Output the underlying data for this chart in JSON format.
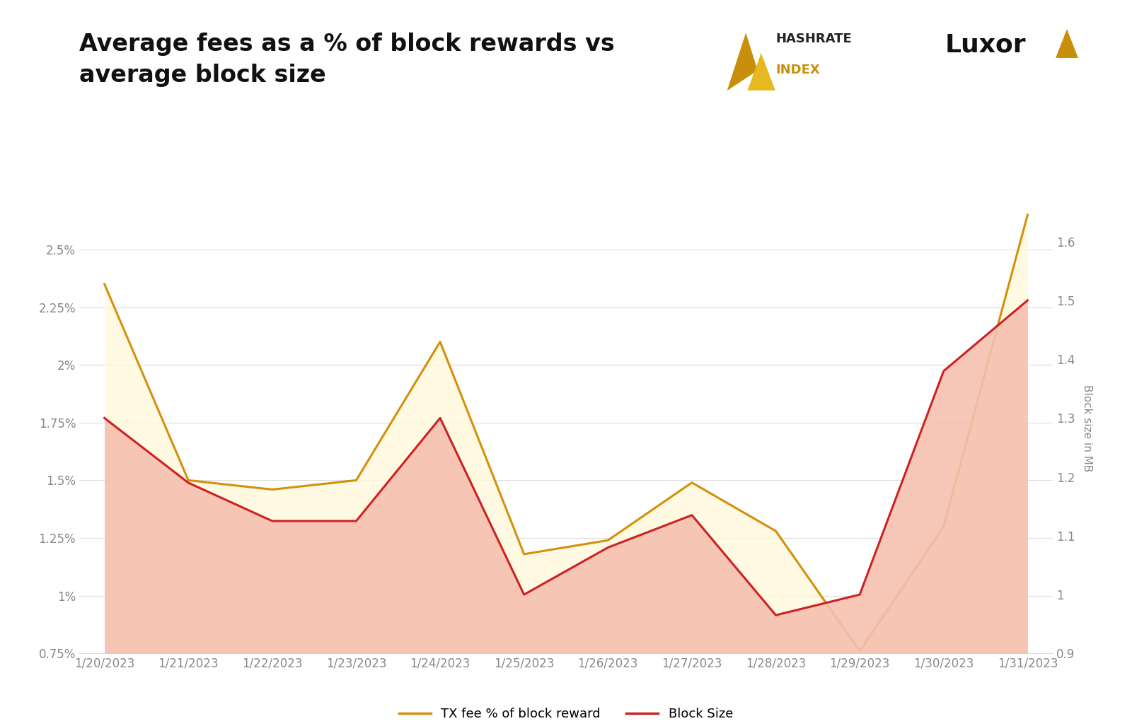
{
  "title": "Average fees as a % of block rewards vs\naverage block size",
  "dates": [
    "1/20/2023",
    "1/21/2023",
    "1/22/2023",
    "1/23/2023",
    "1/24/2023",
    "1/25/2023",
    "1/26/2023",
    "1/27/2023",
    "1/28/2023",
    "1/29/2023",
    "1/30/2023",
    "1/31/2023"
  ],
  "tx_fee_pct": [
    0.0235,
    0.015,
    0.0146,
    0.015,
    0.021,
    0.0118,
    0.0124,
    0.0149,
    0.0128,
    0.0076,
    0.013,
    0.0265
  ],
  "block_size": [
    1.3,
    1.19,
    1.125,
    1.125,
    1.3,
    1.0,
    1.08,
    1.135,
    0.965,
    1.0,
    1.38,
    1.5
  ],
  "tx_fee_color": "#D4900A",
  "block_size_color": "#CC2222",
  "tx_fee_fill_color": "#FFFADC",
  "block_size_fill_color": "#F5C0B0",
  "ylim_left": [
    0.0075,
    0.027
  ],
  "ylim_right": [
    0.9,
    1.665
  ],
  "yticks_left": [
    0.0075,
    0.01,
    0.0125,
    0.015,
    0.0175,
    0.02,
    0.0225,
    0.025
  ],
  "yticks_right": [
    0.9,
    1.0,
    1.1,
    1.2,
    1.3,
    1.4,
    1.5,
    1.6
  ],
  "ytick_labels_left": [
    "0.75%",
    "1%",
    "1.25%",
    "1.5%",
    "1.75%",
    "2%",
    "2.25%",
    "2.5%"
  ],
  "ytick_labels_right": [
    "0.9",
    "1",
    "1.1",
    "1.2",
    "1.3",
    "1.4",
    "1.5",
    "1.6"
  ],
  "ylabel_right": "Block size in MB",
  "legend_labels": [
    "TX fee % of block reward",
    "Block Size"
  ],
  "background_color": "#FFFFFF",
  "title_fontsize": 24,
  "tick_fontsize": 12,
  "ylabel_fontsize": 11,
  "hashrate_text_color": "#222222",
  "hashrate_index_color": "#C8900A",
  "luxor_color": "#111111"
}
